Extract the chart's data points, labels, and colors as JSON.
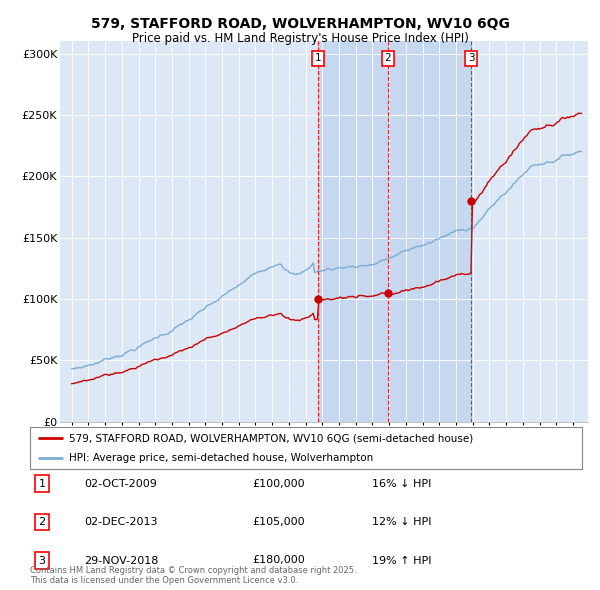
{
  "title": "579, STAFFORD ROAD, WOLVERHAMPTON, WV10 6QG",
  "subtitle": "Price paid vs. HM Land Registry's House Price Index (HPI)",
  "plot_bg_color": "#dce8f5",
  "shade_color": "#c5d8ef",
  "ylim": [
    0,
    310000
  ],
  "yticks": [
    0,
    50000,
    100000,
    150000,
    200000,
    250000,
    300000
  ],
  "ytick_labels": [
    "£0",
    "£50K",
    "£100K",
    "£150K",
    "£200K",
    "£250K",
    "£300K"
  ],
  "xstart_year": 1995,
  "xend_year": 2025,
  "sale_dates_num": [
    2009.75,
    2013.92,
    2018.91
  ],
  "sale_prices": [
    100000,
    105000,
    180000
  ],
  "sale_labels": [
    "1",
    "2",
    "3"
  ],
  "legend_line1": "579, STAFFORD ROAD, WOLVERHAMPTON, WV10 6QG (semi-detached house)",
  "legend_line2": "HPI: Average price, semi-detached house, Wolverhampton",
  "table_entries": [
    {
      "num": "1",
      "date": "02-OCT-2009",
      "price": "£100,000",
      "hpi": "16% ↓ HPI"
    },
    {
      "num": "2",
      "date": "02-DEC-2013",
      "price": "£105,000",
      "hpi": "12% ↓ HPI"
    },
    {
      "num": "3",
      "date": "29-NOV-2018",
      "price": "£180,000",
      "hpi": "19% ↑ HPI"
    }
  ],
  "footer": "Contains HM Land Registry data © Crown copyright and database right 2025.\nThis data is licensed under the Open Government Licence v3.0.",
  "red_color": "#cc0000",
  "blue_color": "#7aadd4"
}
